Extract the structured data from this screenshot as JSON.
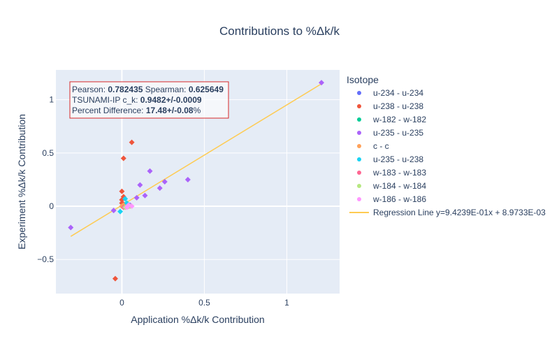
{
  "chart_data": {
    "type": "scatter",
    "title": "Contributions to %Δk/k",
    "xlabel": "Application %Δk/k Contribution",
    "ylabel": "Experiment %Δk/k Contribution",
    "xlim": [
      -0.4,
      1.32
    ],
    "ylim": [
      -0.82,
      1.28
    ],
    "x_ticks": [
      {
        "v": 0,
        "label": "0"
      },
      {
        "v": 0.5,
        "label": "0.5"
      },
      {
        "v": 1,
        "label": "1"
      }
    ],
    "y_ticks": [
      {
        "v": -0.5,
        "label": "−0.5"
      },
      {
        "v": 0,
        "label": "0"
      },
      {
        "v": 0.5,
        "label": "0.5"
      },
      {
        "v": 1,
        "label": "1"
      }
    ],
    "grid": true,
    "legend": {
      "title": "Isotope",
      "placement": "right"
    },
    "series": [
      {
        "name": "u-234 - u-234",
        "color": "#636efa",
        "points": [
          [
            0.01,
            0.0
          ],
          [
            0.02,
            0.01
          ]
        ]
      },
      {
        "name": "u-238 - u-238",
        "color": "#ef553b",
        "points": [
          [
            0.06,
            0.6
          ],
          [
            0.01,
            0.45
          ],
          [
            0.0,
            0.14
          ],
          [
            0.01,
            0.09
          ],
          [
            0.0,
            0.06
          ],
          [
            0.0,
            0.03
          ],
          [
            0.01,
            0.02
          ],
          [
            -0.04,
            -0.68
          ]
        ]
      },
      {
        "name": "w-182 - w-182",
        "color": "#00cc96",
        "points": [
          [
            0.02,
            0.0
          ],
          [
            0.03,
            0.01
          ]
        ]
      },
      {
        "name": "u-235 - u-235",
        "color": "#ab63fa",
        "points": [
          [
            1.21,
            1.16
          ],
          [
            0.4,
            0.25
          ],
          [
            0.17,
            0.33
          ],
          [
            0.23,
            0.17
          ],
          [
            0.26,
            0.23
          ],
          [
            0.14,
            0.1
          ],
          [
            0.11,
            0.2
          ],
          [
            0.09,
            0.08
          ],
          [
            -0.05,
            -0.04
          ],
          [
            -0.31,
            -0.2
          ],
          [
            0.05,
            0.01
          ],
          [
            0.03,
            0.02
          ]
        ]
      },
      {
        "name": "c - c",
        "color": "#ffa15a",
        "points": [
          [
            0.0,
            0.0
          ],
          [
            0.01,
            0.01
          ]
        ]
      },
      {
        "name": "u-235 - u-238",
        "color": "#19d3f3",
        "points": [
          [
            0.02,
            0.07
          ],
          [
            -0.01,
            -0.05
          ],
          [
            0.03,
            0.03
          ]
        ]
      },
      {
        "name": "w-183 - w-183",
        "color": "#ff6692",
        "points": [
          [
            0.04,
            0.0
          ],
          [
            0.01,
            -0.01
          ]
        ]
      },
      {
        "name": "w-184 - w-184",
        "color": "#b6e880",
        "points": [
          [
            0.05,
            0.0
          ],
          [
            0.02,
            -0.01
          ]
        ]
      },
      {
        "name": "w-186 - w-186",
        "color": "#ff97ff",
        "points": [
          [
            0.03,
            -0.01
          ],
          [
            0.06,
            0.0
          ],
          [
            0.04,
            0.01
          ]
        ]
      }
    ],
    "regression": {
      "name": "Regression Line y=9.4239E-01x + 8.9733E-03",
      "color": "#fecb52",
      "slope": 0.94239,
      "intercept": 0.0089733,
      "x_range": [
        -0.31,
        1.21
      ]
    },
    "annotation": {
      "line1": [
        {
          "text": "Pearson: ",
          "bold": false
        },
        {
          "text": "0.782435",
          "bold": true
        },
        {
          "text": " Spearman: ",
          "bold": false
        },
        {
          "text": "0.625649",
          "bold": true
        }
      ],
      "line2": [
        {
          "text": "TSUNAMI-IP c_k: ",
          "bold": false
        },
        {
          "text": "0.9482+/-0.0009",
          "bold": true
        }
      ],
      "line3": [
        {
          "text": "Percent Difference: ",
          "bold": false
        },
        {
          "text": "17.48+/-0.08",
          "bold": true
        },
        {
          "text": "%",
          "bold": false
        }
      ]
    }
  }
}
